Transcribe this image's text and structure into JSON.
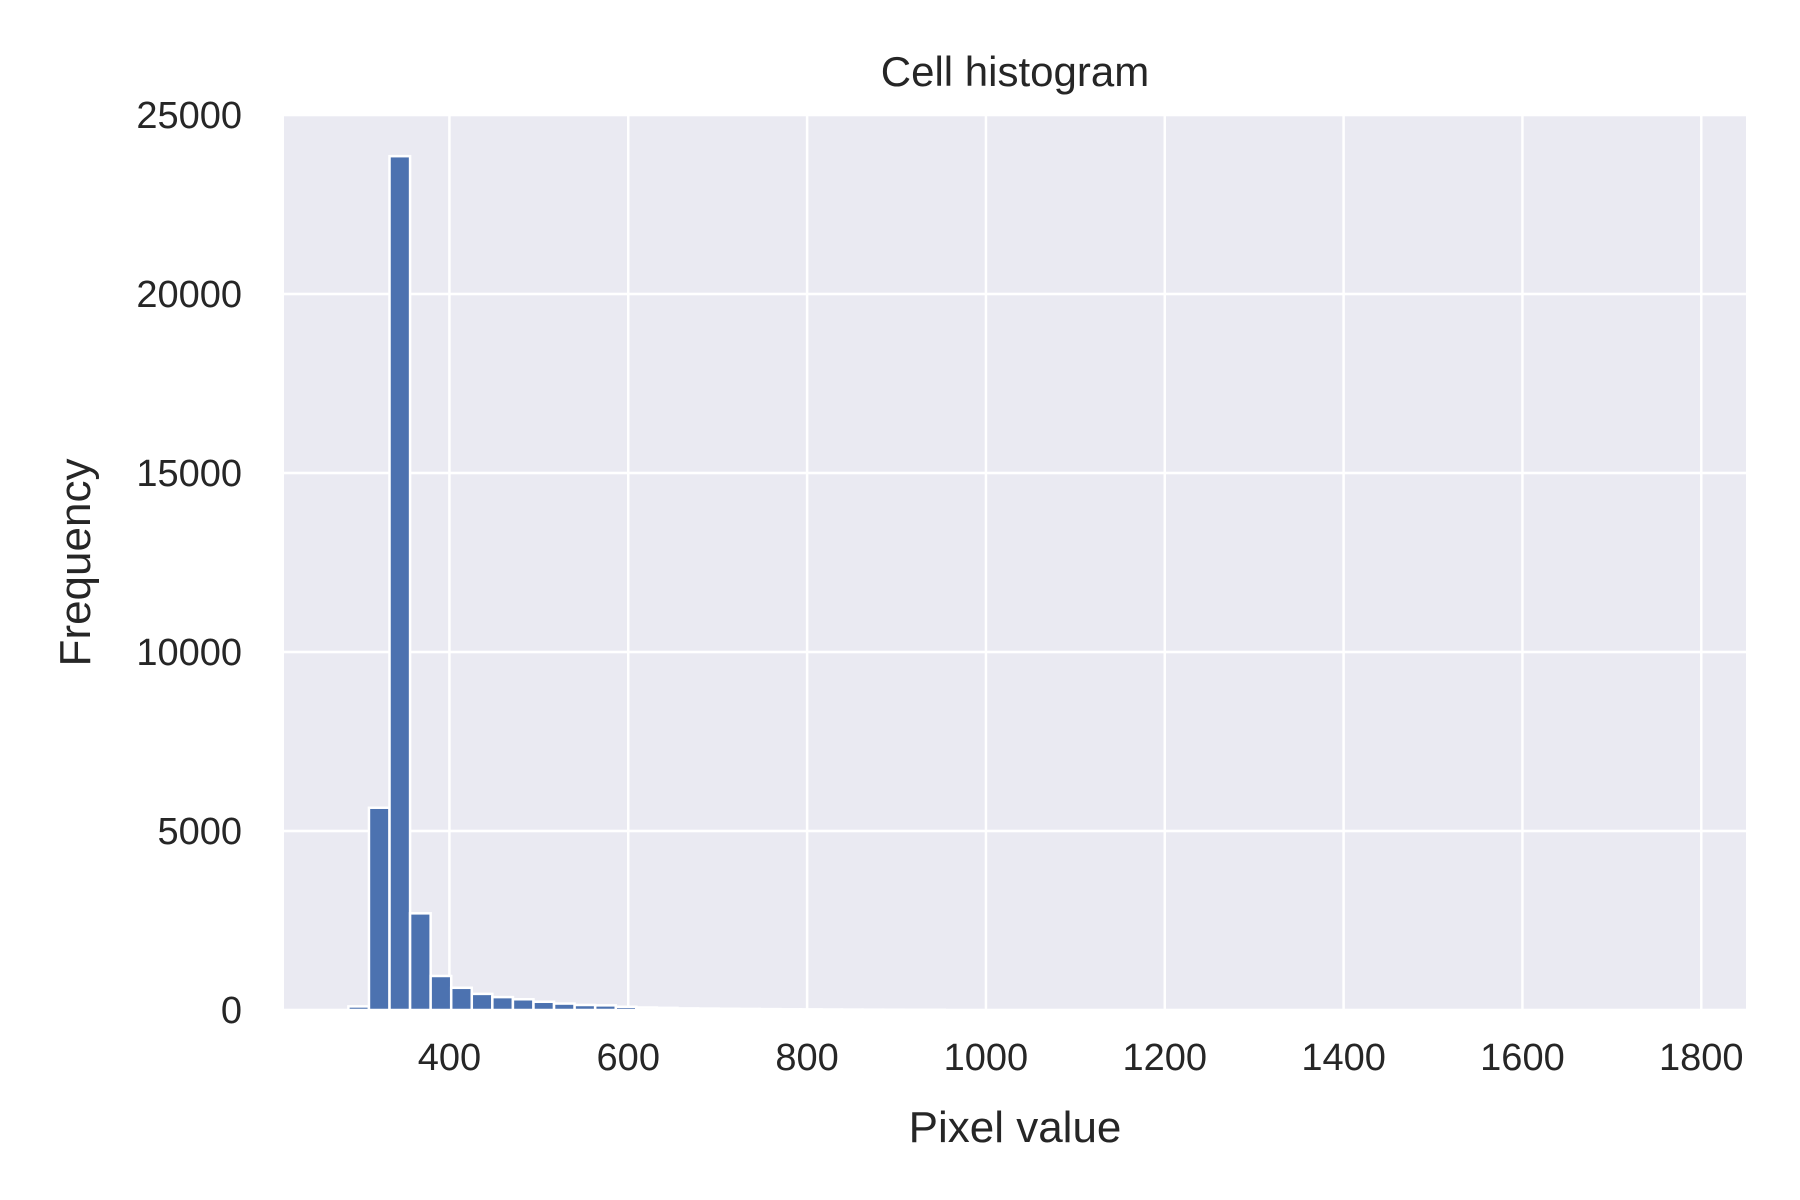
{
  "chart_data": {
    "type": "bar",
    "title": "Cell histogram",
    "xlabel": "Pixel value",
    "ylabel": "Frequency",
    "xlim": [
      215,
      1850
    ],
    "ylim": [
      0,
      25000
    ],
    "xticks": [
      400,
      600,
      800,
      1000,
      1200,
      1400,
      1600,
      1800
    ],
    "yticks": [
      0,
      5000,
      10000,
      15000,
      20000,
      25000
    ],
    "grid": true,
    "legend": "none",
    "bar_color": "#4c72b0",
    "background_color": "#eaeaf2",
    "bins": [
      {
        "x0": 287,
        "x1": 310,
        "value": 100
      },
      {
        "x0": 310,
        "x1": 333,
        "value": 5650
      },
      {
        "x0": 333,
        "x1": 356,
        "value": 23850
      },
      {
        "x0": 356,
        "x1": 379,
        "value": 2700
      },
      {
        "x0": 379,
        "x1": 402,
        "value": 950
      },
      {
        "x0": 402,
        "x1": 425,
        "value": 620
      },
      {
        "x0": 425,
        "x1": 448,
        "value": 450
      },
      {
        "x0": 448,
        "x1": 471,
        "value": 360
      },
      {
        "x0": 471,
        "x1": 494,
        "value": 300
      },
      {
        "x0": 494,
        "x1": 517,
        "value": 230
      },
      {
        "x0": 517,
        "x1": 540,
        "value": 180
      },
      {
        "x0": 540,
        "x1": 563,
        "value": 140
      },
      {
        "x0": 563,
        "x1": 586,
        "value": 130
      },
      {
        "x0": 586,
        "x1": 609,
        "value": 90
      },
      {
        "x0": 609,
        "x1": 632,
        "value": 70
      },
      {
        "x0": 632,
        "x1": 655,
        "value": 60
      },
      {
        "x0": 655,
        "x1": 678,
        "value": 45
      },
      {
        "x0": 678,
        "x1": 701,
        "value": 40
      },
      {
        "x0": 701,
        "x1": 724,
        "value": 35
      },
      {
        "x0": 724,
        "x1": 747,
        "value": 30
      },
      {
        "x0": 747,
        "x1": 770,
        "value": 25
      },
      {
        "x0": 770,
        "x1": 793,
        "value": 20
      },
      {
        "x0": 793,
        "x1": 816,
        "value": 18
      },
      {
        "x0": 816,
        "x1": 839,
        "value": 15
      },
      {
        "x0": 839,
        "x1": 862,
        "value": 12
      },
      {
        "x0": 862,
        "x1": 885,
        "value": 10
      },
      {
        "x0": 885,
        "x1": 908,
        "value": 8
      },
      {
        "x0": 908,
        "x1": 931,
        "value": 6
      },
      {
        "x0": 931,
        "x1": 954,
        "value": 5
      }
    ]
  }
}
